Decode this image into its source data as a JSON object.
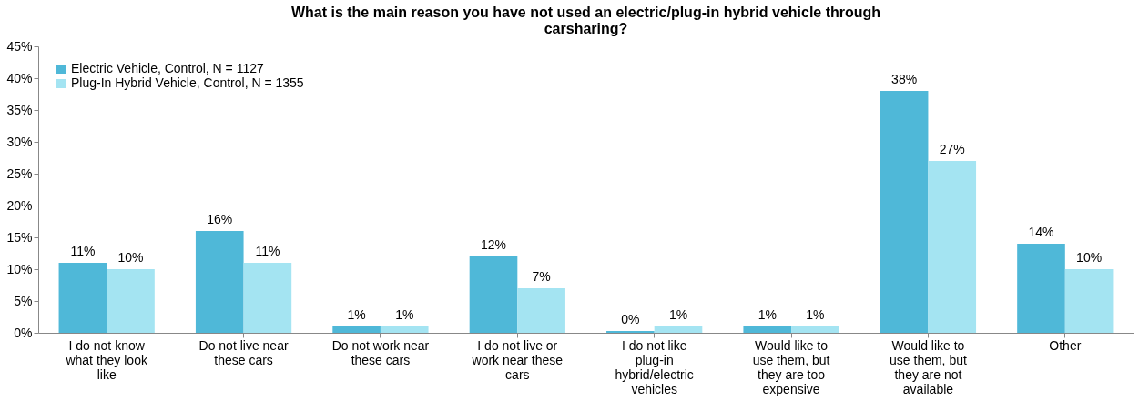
{
  "chart_data": {
    "type": "bar",
    "title": "What is the main reason you have not used an electric/plug-in hybrid vehicle through carsharing?",
    "categories": [
      "I do not know what they look like",
      "Do not live near these cars",
      "Do not work near these cars",
      "I do not live or work near these cars",
      "I do not like plug-in hybrid/electric vehicles",
      "Would like to use them, but they are too expensive",
      "Would like to use them, but they are not available",
      "Other"
    ],
    "series": [
      {
        "name": "Electric Vehicle, Control, N = 1127",
        "color": "#4fb8d8",
        "values": [
          11,
          16,
          1,
          12,
          0.3,
          1,
          38,
          14
        ],
        "value_labels": [
          "11%",
          "16%",
          "1%",
          "12%",
          "0%",
          "1%",
          "38%",
          "14%"
        ]
      },
      {
        "name": "Plug-In Hybrid Vehicle, Control, N = 1355",
        "color": "#a4e4f2",
        "values": [
          10,
          11,
          1,
          7,
          1,
          1,
          27,
          10
        ],
        "value_labels": [
          "10%",
          "11%",
          "1%",
          "7%",
          "1%",
          "1%",
          "27%",
          "10%"
        ]
      }
    ],
    "ylim": [
      0,
      45
    ],
    "yticks": [
      {
        "value": 0,
        "label": "0%"
      },
      {
        "value": 5,
        "label": "5%"
      },
      {
        "value": 10,
        "label": "10%"
      },
      {
        "value": 15,
        "label": "15%"
      },
      {
        "value": 20,
        "label": "20%"
      },
      {
        "value": 25,
        "label": "25%"
      },
      {
        "value": 30,
        "label": "30%"
      },
      {
        "value": 35,
        "label": "35%"
      },
      {
        "value": 40,
        "label": "40%"
      },
      {
        "value": 45,
        "label": "45%"
      }
    ],
    "grid": false,
    "legend": "top left"
  }
}
